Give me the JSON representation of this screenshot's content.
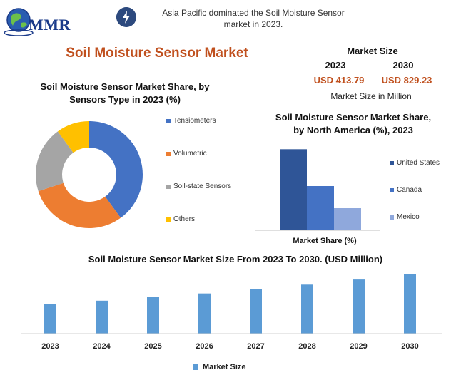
{
  "brand": {
    "logo_text": "MMR",
    "logo_icon": "globe-icon"
  },
  "header": {
    "highlight_icon": "lightning-icon",
    "highlight_line1": "Asia Pacific dominated the Soil Moisture Sensor",
    "highlight_line2": "market in 2023.",
    "title": "Soil Moisture Sensor Market"
  },
  "market_size": {
    "heading": "Market Size",
    "year_a": "2023",
    "year_b": "2030",
    "value_a": "USD 413.79",
    "value_b": "USD 829.23",
    "unit": "Market Size in Million"
  },
  "colors": {
    "blue": "#4472c4",
    "orange": "#ed7d31",
    "gray": "#a5a5a5",
    "yellow": "#ffc000",
    "title_orange": "#c0501e",
    "bar_dark": "#2f5597",
    "bar_mid": "#4472c4",
    "bar_light": "#8fa8dc",
    "bar_bottom": "#5b9bd5"
  },
  "chart_data": [
    {
      "type": "pie",
      "title_line1": "Soil Moisture Sensor Market Share, by",
      "title_line2": "Sensors Type in 2023 (%)",
      "categories": [
        "Tensiometers",
        "Volumetric",
        "Soil-state Sensors",
        "Others"
      ],
      "values": [
        40,
        30,
        20,
        10
      ],
      "donut": true,
      "legend": "right"
    },
    {
      "type": "bar",
      "title_line1": "Soil Moisture Sensor Market Share,",
      "title_line2": "by North America (%), 2023",
      "categories": [
        "United States",
        "Canada",
        "Mexico"
      ],
      "values": [
        55,
        30,
        15
      ],
      "xlabel": "Market Share (%)",
      "ylim": [
        0,
        60
      ],
      "legend": "right"
    },
    {
      "type": "bar",
      "title": "Soil Moisture Sensor Market Size From 2023 To 2030. (USD Million)",
      "categories": [
        "2023",
        "2024",
        "2025",
        "2026",
        "2027",
        "2028",
        "2029",
        "2030"
      ],
      "series": [
        {
          "name": "Market  Size",
          "values": [
            413.79,
            457.0,
            504.8,
            557.5,
            615.7,
            680.0,
            751.0,
            829.23
          ]
        }
      ],
      "ylim": [
        0,
        900
      ],
      "legend": "bottom"
    }
  ]
}
